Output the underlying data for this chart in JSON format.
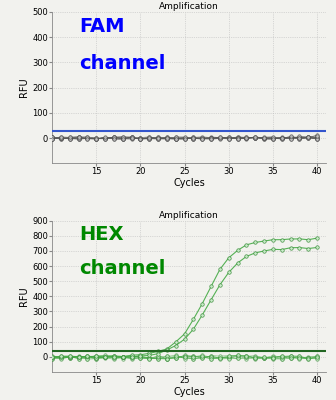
{
  "title": "Amplification",
  "xlabel": "Cycles",
  "ylabel": "RFU",
  "fam_ylim": [
    -100,
    500
  ],
  "fam_yticks": [
    0,
    100,
    200,
    300,
    400,
    500
  ],
  "fam_label_line1": "FAM",
  "fam_label_line2": "channel",
  "fam_label_color": "#0000FF",
  "fam_threshold": 28,
  "fam_threshold_color": "#3355CC",
  "fam_line_color": "#555555",
  "fam_marker_facecolor": "#CCCCCC",
  "fam_marker_edgecolor": "#444444",
  "hex_ylim": [
    -100,
    900
  ],
  "hex_yticks": [
    0,
    100,
    200,
    300,
    400,
    500,
    600,
    700,
    800,
    900
  ],
  "hex_label_line1": "HEX",
  "hex_label_line2": "channel",
  "hex_label_color": "#008800",
  "hex_threshold": 42,
  "hex_threshold_color": "#226622",
  "hex_line_color": "#44AA44",
  "hex_marker_facecolor": "#CCEECC",
  "hex_marker_edgecolor": "#338833",
  "xlim": [
    10,
    41
  ],
  "xticks": [
    15,
    20,
    25,
    30,
    35,
    40
  ],
  "background_color": "#F2F2EE",
  "grid_color": "#BBBBBB",
  "spine_color": "#888888"
}
